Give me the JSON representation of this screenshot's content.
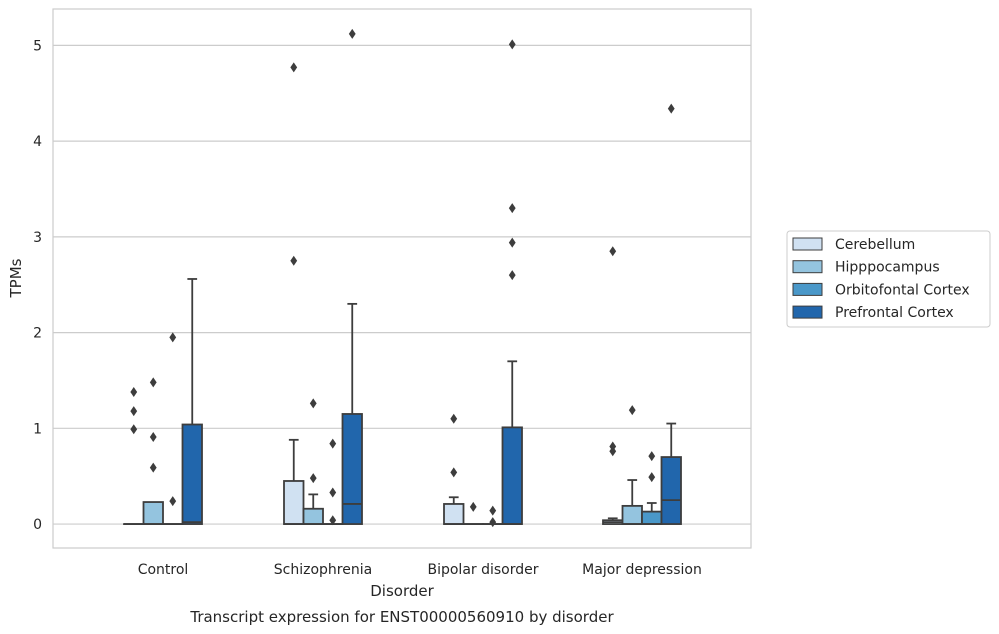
{
  "chart_data": {
    "type": "box",
    "xlabel": "Disorder",
    "ylabel": "TPMs",
    "caption": "Transcript expression for ENST00000560910 by disorder",
    "ylim": [
      -0.25,
      5.38
    ],
    "yticks": [
      0,
      1,
      2,
      3,
      4,
      5
    ],
    "grid": "horizontal",
    "legend_position": "right",
    "categories": [
      "Control",
      "Schizophrenia",
      "Bipolar disorder",
      "Major depression"
    ],
    "series": [
      {
        "name": "Cerebellum",
        "color": "#d0e1f2",
        "boxes": [
          {
            "q1": 0,
            "median": 0,
            "q3": 0,
            "whisker_low": 0,
            "whisker_high": 0,
            "outliers": [
              1.38,
              1.18,
              0.99
            ]
          },
          {
            "q1": 0,
            "median": 0,
            "q3": 0.45,
            "whisker_low": 0,
            "whisker_high": 0.88,
            "outliers": [
              4.77,
              2.75
            ]
          },
          {
            "q1": 0,
            "median": 0,
            "q3": 0.21,
            "whisker_low": 0,
            "whisker_high": 0.28,
            "outliers": [
              1.1,
              0.54
            ]
          },
          {
            "q1": 0,
            "median": 0.02,
            "q3": 0.04,
            "whisker_low": 0,
            "whisker_high": 0.06,
            "outliers": [
              2.85,
              0.81,
              0.76
            ]
          }
        ]
      },
      {
        "name": "Hipppocampus",
        "color": "#94c4df",
        "boxes": [
          {
            "q1": 0,
            "median": 0,
            "q3": 0.23,
            "whisker_low": 0,
            "whisker_high": 0.23,
            "outliers": [
              1.48,
              0.91,
              0.59
            ]
          },
          {
            "q1": 0,
            "median": 0,
            "q3": 0.16,
            "whisker_low": 0,
            "whisker_high": 0.31,
            "outliers": [
              1.26,
              0.48
            ]
          },
          {
            "q1": 0,
            "median": 0,
            "q3": 0,
            "whisker_low": 0,
            "whisker_high": 0,
            "outliers": [
              0.18
            ]
          },
          {
            "q1": 0,
            "median": 0,
            "q3": 0.19,
            "whisker_low": 0,
            "whisker_high": 0.46,
            "outliers": [
              1.19
            ]
          }
        ]
      },
      {
        "name": "Orbitofontal Cortex",
        "color": "#4a98c9",
        "boxes": [
          {
            "q1": 0,
            "median": 0,
            "q3": 0,
            "whisker_low": 0,
            "whisker_high": 0,
            "outliers": [
              1.95,
              0.24
            ]
          },
          {
            "q1": 0,
            "median": 0,
            "q3": 0,
            "whisker_low": 0,
            "whisker_high": 0,
            "outliers": [
              0.84,
              0.33,
              0.04
            ]
          },
          {
            "q1": 0,
            "median": 0,
            "q3": 0,
            "whisker_low": 0,
            "whisker_high": 0,
            "outliers": [
              0.14,
              0.02
            ]
          },
          {
            "q1": 0,
            "median": 0,
            "q3": 0.13,
            "whisker_low": 0,
            "whisker_high": 0.22,
            "outliers": [
              0.71,
              0.49
            ]
          }
        ]
      },
      {
        "name": "Prefrontal Cortex",
        "color": "#2166ac",
        "boxes": [
          {
            "q1": 0,
            "median": 0.02,
            "q3": 1.04,
            "whisker_low": 0,
            "whisker_high": 2.56,
            "outliers": []
          },
          {
            "q1": 0,
            "median": 0.21,
            "q3": 1.15,
            "whisker_low": 0,
            "whisker_high": 2.3,
            "outliers": [
              5.12
            ]
          },
          {
            "q1": 0,
            "median": 0,
            "q3": 1.01,
            "whisker_low": 0,
            "whisker_high": 1.7,
            "outliers": [
              5.01,
              3.3,
              2.94,
              2.6
            ]
          },
          {
            "q1": 0,
            "median": 0.25,
            "q3": 0.7,
            "whisker_low": 0,
            "whisker_high": 1.05,
            "outliers": [
              4.34
            ]
          }
        ]
      }
    ]
  }
}
